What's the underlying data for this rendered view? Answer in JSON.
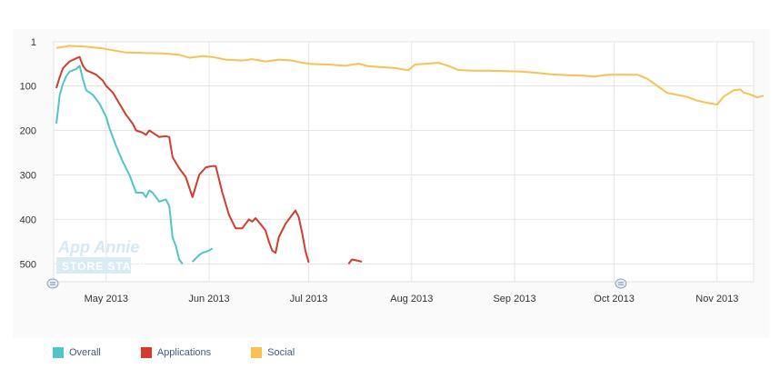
{
  "chart_data": {
    "type": "line",
    "y_reversed": true,
    "ylim": [
      1,
      540
    ],
    "yticks": [
      1,
      100,
      200,
      300,
      400,
      500
    ],
    "xticks": [
      "May 2013",
      "Jun 2013",
      "Jul 2013",
      "Aug 2013",
      "Sep 2013",
      "Oct 2013",
      "Nov 2013"
    ],
    "xlim": [
      "2013-04-16",
      "2013-11-12"
    ],
    "grid": true,
    "legend_position": "bottom-left",
    "watermark": "App Annie STORE STATS",
    "series": [
      {
        "name": "Overall",
        "color": "#4fc5c8",
        "segments": [
          [
            [
              "2013-04-16",
              185
            ],
            [
              "2013-04-17",
              120
            ],
            [
              "2013-04-18",
              95
            ],
            [
              "2013-04-19",
              78
            ],
            [
              "2013-04-20",
              68
            ],
            [
              "2013-04-22",
              62
            ],
            [
              "2013-04-23",
              55
            ],
            [
              "2013-04-24",
              85
            ],
            [
              "2013-04-25",
              110
            ],
            [
              "2013-04-26",
              115
            ],
            [
              "2013-04-27",
              120
            ],
            [
              "2013-04-29",
              140
            ],
            [
              "2013-05-01",
              170
            ],
            [
              "2013-05-02",
              195
            ],
            [
              "2013-05-04",
              235
            ],
            [
              "2013-05-06",
              270
            ],
            [
              "2013-05-08",
              300
            ],
            [
              "2013-05-10",
              340
            ],
            [
              "2013-05-12",
              340
            ],
            [
              "2013-05-13",
              350
            ],
            [
              "2013-05-14",
              335
            ],
            [
              "2013-05-15",
              340
            ],
            [
              "2013-05-17",
              360
            ],
            [
              "2013-05-19",
              355
            ],
            [
              "2013-05-20",
              370
            ],
            [
              "2013-05-21",
              440
            ],
            [
              "2013-05-22",
              460
            ],
            [
              "2013-05-23",
              490
            ],
            [
              "2013-05-24",
              500
            ]
          ],
          [
            [
              "2013-05-27",
              495
            ],
            [
              "2013-05-29",
              480
            ],
            [
              "2013-05-30",
              475
            ],
            [
              "2013-06-01",
              470
            ],
            [
              "2013-06-02",
              465
            ]
          ]
        ]
      },
      {
        "name": "Applications",
        "color": "#d33c2c",
        "segments": [
          [
            [
              "2013-04-16",
              105
            ],
            [
              "2013-04-17",
              80
            ],
            [
              "2013-04-18",
              60
            ],
            [
              "2013-04-20",
              45
            ],
            [
              "2013-04-22",
              38
            ],
            [
              "2013-04-23",
              35
            ],
            [
              "2013-04-24",
              55
            ],
            [
              "2013-04-25",
              65
            ],
            [
              "2013-04-26",
              68
            ],
            [
              "2013-04-28",
              75
            ],
            [
              "2013-04-30",
              88
            ],
            [
              "2013-05-01",
              100
            ],
            [
              "2013-05-03",
              115
            ],
            [
              "2013-05-05",
              140
            ],
            [
              "2013-05-07",
              165
            ],
            [
              "2013-05-09",
              185
            ],
            [
              "2013-05-10",
              200
            ],
            [
              "2013-05-12",
              205
            ],
            [
              "2013-05-13",
              210
            ],
            [
              "2013-05-14",
              200
            ],
            [
              "2013-05-15",
              205
            ],
            [
              "2013-05-17",
              215
            ],
            [
              "2013-05-19",
              213
            ],
            [
              "2013-05-20",
              215
            ],
            [
              "2013-05-21",
              260
            ],
            [
              "2013-05-23",
              285
            ],
            [
              "2013-05-25",
              305
            ],
            [
              "2013-05-27",
              350
            ],
            [
              "2013-05-29",
              300
            ],
            [
              "2013-05-31",
              283
            ],
            [
              "2013-06-02",
              280
            ],
            [
              "2013-06-03",
              280
            ],
            [
              "2013-06-05",
              340
            ],
            [
              "2013-06-07",
              390
            ],
            [
              "2013-06-09",
              420
            ],
            [
              "2013-06-11",
              420
            ],
            [
              "2013-06-13",
              400
            ],
            [
              "2013-06-14",
              405
            ],
            [
              "2013-06-15",
              397
            ],
            [
              "2013-06-17",
              415
            ],
            [
              "2013-06-18",
              425
            ],
            [
              "2013-06-19",
              450
            ],
            [
              "2013-06-20",
              470
            ],
            [
              "2013-06-21",
              475
            ],
            [
              "2013-06-22",
              440
            ],
            [
              "2013-06-24",
              410
            ],
            [
              "2013-06-26",
              390
            ],
            [
              "2013-06-27",
              380
            ],
            [
              "2013-06-28",
              395
            ],
            [
              "2013-06-29",
              430
            ],
            [
              "2013-06-30",
              470
            ],
            [
              "2013-07-01",
              497
            ]
          ],
          [
            [
              "2013-07-13",
              500
            ],
            [
              "2013-07-14",
              490
            ],
            [
              "2013-07-16",
              493
            ],
            [
              "2013-07-17",
              495
            ]
          ]
        ]
      },
      {
        "name": "Social",
        "color": "#f9c153",
        "segments": [
          [
            [
              "2013-04-16",
              15
            ],
            [
              "2013-04-20",
              10
            ],
            [
              "2013-04-25",
              12
            ],
            [
              "2013-04-30",
              16
            ],
            [
              "2013-05-03",
              20
            ],
            [
              "2013-05-07",
              25
            ],
            [
              "2013-05-12",
              26
            ],
            [
              "2013-05-18",
              27
            ],
            [
              "2013-05-23",
              30
            ],
            [
              "2013-05-26",
              37
            ],
            [
              "2013-05-30",
              33
            ],
            [
              "2013-06-02",
              35
            ],
            [
              "2013-06-06",
              41
            ],
            [
              "2013-06-11",
              43
            ],
            [
              "2013-06-14",
              40
            ],
            [
              "2013-06-18",
              45
            ],
            [
              "2013-06-22",
              41
            ],
            [
              "2013-06-26",
              43
            ],
            [
              "2013-06-29",
              48
            ],
            [
              "2013-07-02",
              51
            ],
            [
              "2013-07-07",
              52
            ],
            [
              "2013-07-12",
              55
            ],
            [
              "2013-07-16",
              50
            ],
            [
              "2013-07-19",
              56
            ],
            [
              "2013-07-23",
              58
            ],
            [
              "2013-07-27",
              60
            ],
            [
              "2013-07-31",
              65
            ],
            [
              "2013-08-02",
              52
            ],
            [
              "2013-08-06",
              50
            ],
            [
              "2013-08-09",
              48
            ],
            [
              "2013-08-12",
              55
            ],
            [
              "2013-08-15",
              64
            ],
            [
              "2013-08-19",
              66
            ],
            [
              "2013-08-24",
              66
            ],
            [
              "2013-08-29",
              67
            ],
            [
              "2013-09-03",
              68
            ],
            [
              "2013-09-08",
              71
            ],
            [
              "2013-09-12",
              74
            ],
            [
              "2013-09-17",
              76
            ],
            [
              "2013-09-22",
              77
            ],
            [
              "2013-09-25",
              79
            ],
            [
              "2013-09-29",
              75
            ],
            [
              "2013-10-03",
              75
            ],
            [
              "2013-10-08",
              75
            ],
            [
              "2013-10-11",
              84
            ],
            [
              "2013-10-14",
              100
            ],
            [
              "2013-10-17",
              116
            ],
            [
              "2013-10-20",
              120
            ],
            [
              "2013-10-23",
              125
            ],
            [
              "2013-10-26",
              133
            ],
            [
              "2013-10-29",
              138
            ],
            [
              "2013-11-01",
              142
            ],
            [
              "2013-11-03",
              124
            ],
            [
              "2013-11-06",
              110
            ],
            [
              "2013-11-08",
              108
            ],
            [
              "2013-11-09",
              115
            ],
            [
              "2013-11-10",
              117
            ],
            [
              "2013-11-12",
              122
            ],
            [
              "2013-11-13",
              126
            ],
            [
              "2013-11-15",
              122
            ]
          ]
        ]
      }
    ]
  },
  "legend": {
    "items": [
      {
        "label": "Overall",
        "color": "#4fc5c8"
      },
      {
        "label": "Applications",
        "color": "#d33c2c"
      },
      {
        "label": "Social",
        "color": "#f9c153"
      }
    ]
  }
}
